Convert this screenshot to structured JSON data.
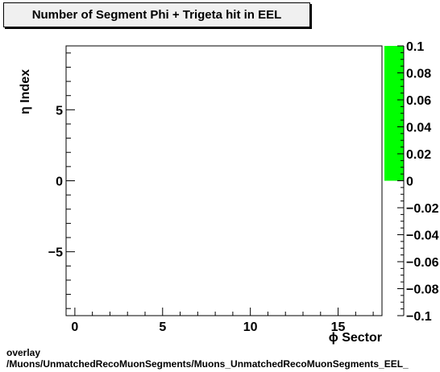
{
  "chart_data": {
    "type": "heatmap",
    "title": "Number of Segment Phi + Trigeta hit in EEL",
    "xlabel": "ϕ Sector",
    "ylabel": "η Index",
    "xlim": [
      -0.5,
      17.5
    ],
    "ylim": [
      -9.5,
      9.5
    ],
    "x_ticks": [
      0,
      5,
      10,
      15
    ],
    "y_ticks": [
      -5,
      0,
      5
    ],
    "z_range": [
      -0.1,
      0.1
    ],
    "z_ticks": [
      0.1,
      0.08,
      0.06,
      0.04,
      0.02,
      0,
      -0.02,
      -0.04,
      -0.06,
      -0.08,
      -0.1
    ],
    "z_tick_labels": [
      "0.1",
      "0.08",
      "0.06",
      "0.04",
      "0.02",
      "0",
      "−0.02",
      "−0.04",
      "−0.06",
      "−0.08",
      "−0.1"
    ],
    "x_tick_labels": [
      "0",
      "5",
      "10",
      "15"
    ],
    "y_tick_labels": [
      "−5",
      "0",
      "5"
    ],
    "cells": [],
    "palette_fill": {
      "from": 0,
      "to": 0.1,
      "color": "#00ff00"
    }
  },
  "footer": {
    "line1": "overlay",
    "line2": "/Muons/UnmatchedRecoMuonSegments/Muons_UnmatchedRecoMuonSegments_EEL_"
  }
}
